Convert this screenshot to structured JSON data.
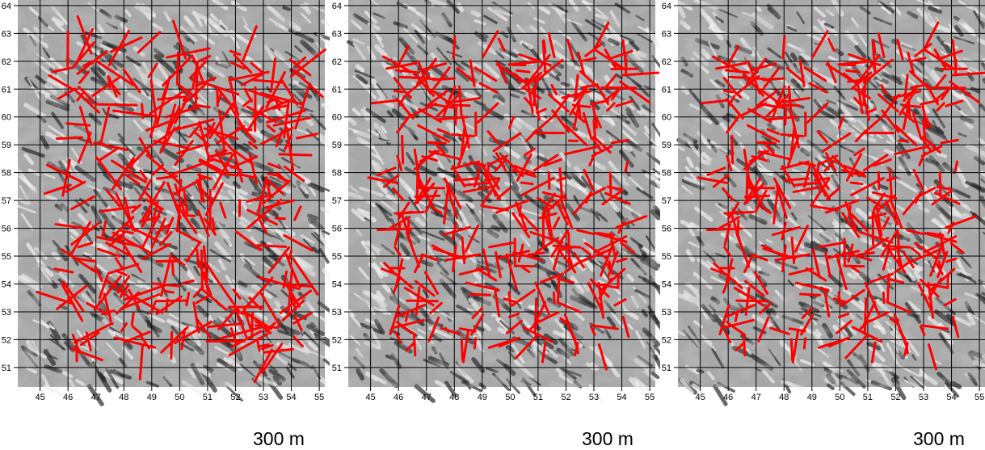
{
  "chart_data": [
    {
      "type": "map",
      "x_ticks": [
        "45",
        "46",
        "47",
        "48",
        "49",
        "50",
        "51",
        "52",
        "53",
        "54",
        "55"
      ],
      "y_ticks": [
        "51",
        "52",
        "53",
        "54",
        "55",
        "56",
        "57",
        "58",
        "59",
        "60",
        "61",
        "62",
        "63",
        "64"
      ],
      "xlim": [
        44.2,
        55.2
      ],
      "ylim": [
        50.3,
        64.2
      ],
      "grid": true,
      "scale_label": "300 m",
      "vector_color": "#ff0000"
    },
    {
      "type": "map",
      "x_ticks": [
        "45",
        "46",
        "47",
        "48",
        "49",
        "50",
        "51",
        "52",
        "53",
        "54",
        "55"
      ],
      "y_ticks": [
        "51",
        "52",
        "53",
        "54",
        "55",
        "56",
        "57",
        "58",
        "59",
        "60",
        "61",
        "62",
        "63",
        "64"
      ],
      "xlim": [
        44.2,
        55.2
      ],
      "ylim": [
        50.3,
        64.2
      ],
      "grid": true,
      "scale_label": "300 m",
      "vector_color": "#ff0000"
    },
    {
      "type": "map",
      "x_ticks": [
        "45",
        "46",
        "47",
        "48",
        "49",
        "50",
        "51",
        "52",
        "53",
        "54",
        "55"
      ],
      "y_ticks": [
        "51",
        "52",
        "53",
        "54",
        "55",
        "56",
        "57",
        "58",
        "59",
        "60",
        "61",
        "62",
        "63",
        "64"
      ],
      "xlim": [
        44.2,
        55.2
      ],
      "ylim": [
        50.3,
        64.2
      ],
      "grid": true,
      "scale_label": "300 m",
      "vector_color": "#ff0000"
    }
  ]
}
